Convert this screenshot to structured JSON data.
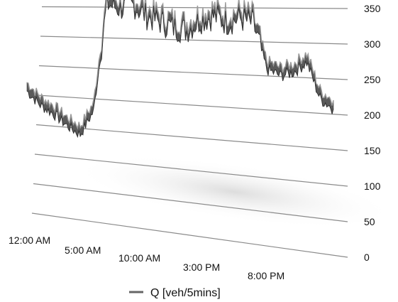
{
  "chart_data": {
    "type": "line",
    "style": "3d-ribbon",
    "ylim": [
      0,
      350
    ],
    "yticks": [
      0,
      50,
      100,
      150,
      200,
      250,
      300,
      350
    ],
    "xticks": [
      "12:00 AM",
      "5:00 AM",
      "10:00 AM",
      "3:00 PM",
      "8:00 PM"
    ],
    "x_hours": [
      0,
      1,
      2,
      3,
      4,
      5,
      6,
      7,
      8,
      9,
      10,
      11,
      12,
      13,
      14,
      15,
      16,
      17,
      18,
      19,
      20,
      21,
      22,
      23
    ],
    "series": [
      {
        "name": "Q [veh/5mins]",
        "color": "#666666",
        "values": [
          190,
          165,
          150,
          130,
          115,
          155,
          335,
          325,
          330,
          310,
          300,
          290,
          285,
          300,
          305,
          295,
          300,
          290,
          220,
          210,
          215,
          230,
          175,
          160
        ]
      }
    ],
    "legend_position": "bottom",
    "grid": true
  }
}
